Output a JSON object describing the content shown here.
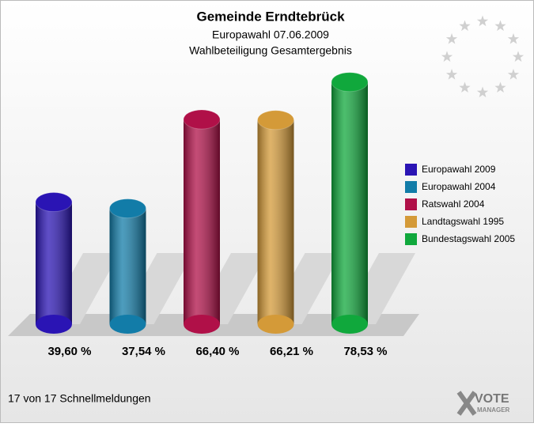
{
  "chart_data": {
    "type": "bar",
    "title": "Gemeinde Erndtebrück",
    "subtitle": [
      "Europawahl 07.06.2009",
      "Wahlbeteiligung Gesamtergebnis"
    ],
    "categories": [
      "Europawahl 2009",
      "Europawahl 2004",
      "Ratswahl 2004",
      "Landtagswahl 1995",
      "Bundestagswahl 2005"
    ],
    "values": [
      39.6,
      37.54,
      66.4,
      66.21,
      78.53
    ],
    "value_labels": [
      "39,60 %",
      "37,54 %",
      "66,40 %",
      "66,21 %",
      "78,53 %"
    ],
    "colors": [
      "#2a14b4",
      "#127ca8",
      "#b01048",
      "#d49a38",
      "#10a83c"
    ],
    "legend": "right",
    "footer": "17 von 17 Schnellmeldungen",
    "logo": [
      "VOTE",
      "MANAGER"
    ]
  }
}
